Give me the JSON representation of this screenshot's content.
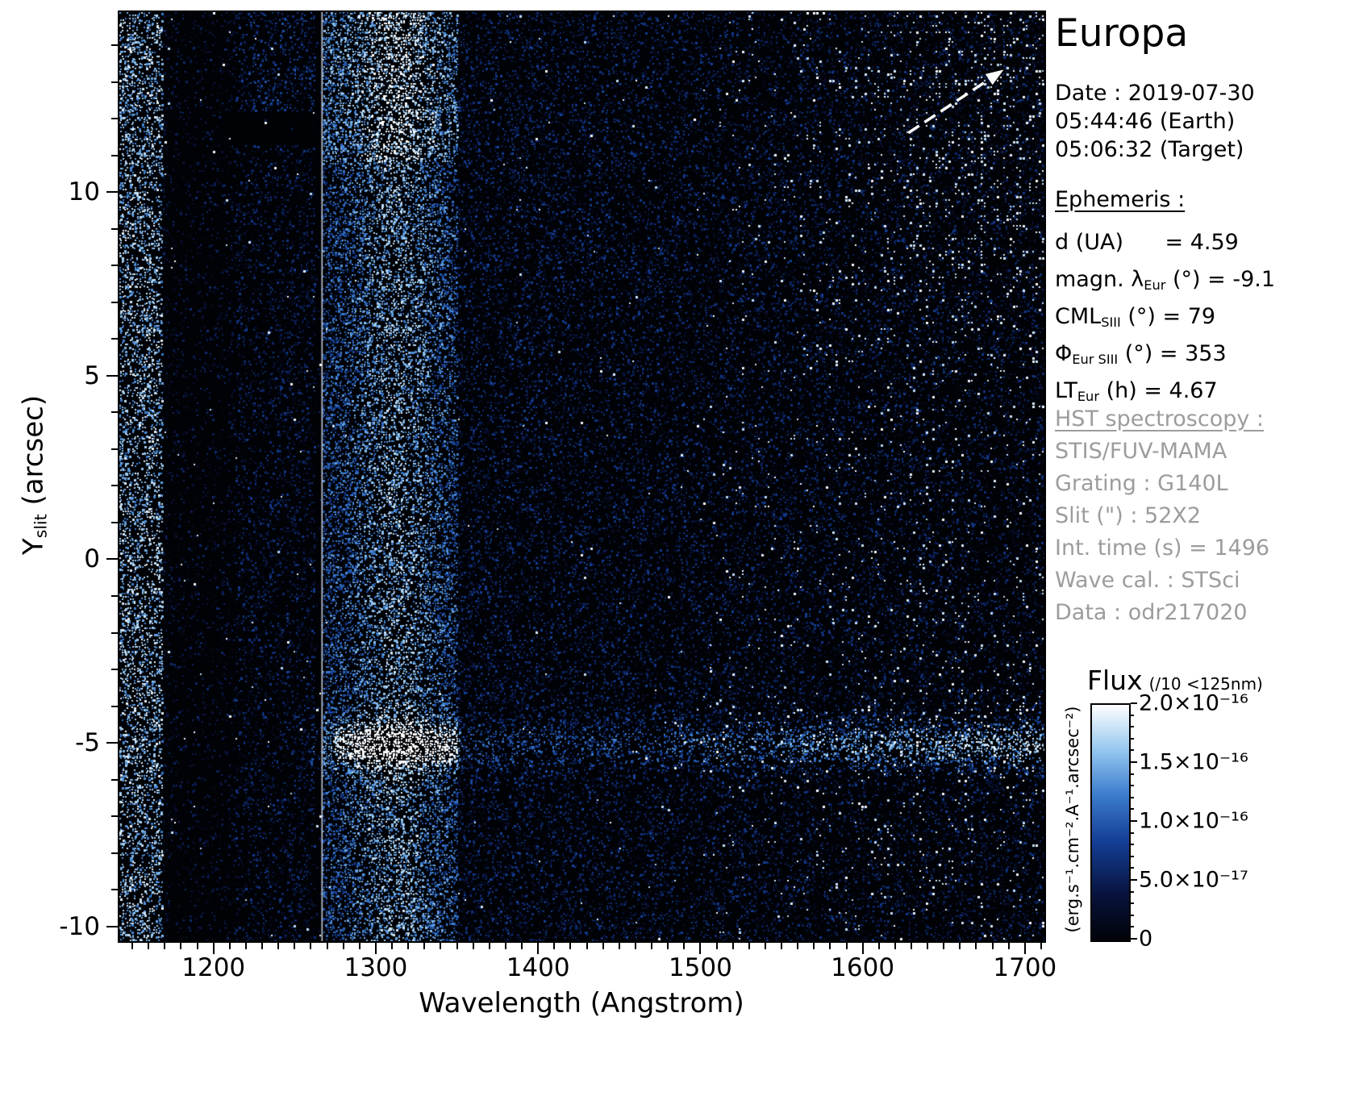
{
  "page": {
    "title": "Europa"
  },
  "info": {
    "date": "Date : 2019-07-30",
    "earth_time": "05:44:46 (Earth)",
    "target_time": "05:06:32 (Target)"
  },
  "ephemeris": {
    "heading": "Ephemeris :",
    "rows": [
      {
        "pre": "d (UA)",
        "sub": "",
        "post": "      = 4.59"
      },
      {
        "pre": "magn. λ",
        "sub": "Eur",
        "post": " (°) = -9.1"
      },
      {
        "pre": "CML",
        "sub": "SIII",
        "post": " (°) = 79"
      },
      {
        "pre": "Φ",
        "sub": "Eur SIII",
        "post": " (°) = 353"
      },
      {
        "pre": "LT",
        "sub": "Eur",
        "post": " (h) = 4.67"
      }
    ]
  },
  "hst": {
    "heading": "HST spectroscopy :",
    "lines": [
      "STIS/FUV-MAMA",
      "Grating : G140L",
      "Slit (\") : 52X2",
      "Int. time (s) = 1496",
      "Wave cal. : STSci",
      "Data : odr217020"
    ]
  },
  "colorbar": {
    "label": "Flux",
    "note": "(/10 <125nm)",
    "ticks": [
      "2.0×10⁻¹⁶",
      "1.5×10⁻¹⁶",
      "1.0×10⁻¹⁶",
      "5.0×10⁻¹⁷",
      "0"
    ],
    "unit": "(erg.s⁻¹.cm⁻².A⁻¹.arcsec⁻²)"
  },
  "axes": {
    "xlabel": "Wavelength (Angstrom)",
    "ylabel_pre": "Y",
    "ylabel_sub": "slit",
    "ylabel_post": " (arcsec)"
  },
  "chart_data": {
    "type": "heatmap",
    "title": "Europa",
    "xlabel": "Wavelength (Angstrom)",
    "ylabel": "Y_slit (arcsec)",
    "xlim": [
      1142,
      1712
    ],
    "ylim": [
      -10.4,
      14.9
    ],
    "x_ticks": [
      1200,
      1300,
      1400,
      1500,
      1600,
      1700
    ],
    "x_minor_step": 10,
    "y_ticks": [
      -10,
      -5,
      0,
      5,
      10
    ],
    "y_minor_step": 1,
    "colorbar_label": "Flux (/10 <125nm)",
    "colorbar_unit": "erg.s⁻¹.cm⁻².A⁻¹.arcsec⁻²",
    "colorbar_range": [
      0,
      2e-16
    ],
    "colorbar_tick_values": [
      0,
      5e-17,
      1e-16,
      1.5e-16,
      2e-16
    ],
    "seed": 20190730,
    "features": {
      "detector_left_edge_lam": [
        1142,
        1168
      ],
      "dark_band_lam": [
        1168,
        1213
      ],
      "moderate_band_lam": [
        1213,
        1262
      ],
      "masked_rect": {
        "lam": [
          1204,
          1266
        ],
        "y": [
          11.3,
          12.2
        ]
      },
      "detector_seam_lam": 1266.5,
      "bright_emission_column_lam": [
        1267,
        1350
      ],
      "emission_peak_lam": 1312,
      "europa_disk_streak_y": -5.05,
      "sparse_white_field_lam_start": 1500,
      "north_arrow": {
        "tail_frac": [
          0.853,
          0.13
        ],
        "head_frac": [
          0.956,
          0.062
        ]
      }
    }
  }
}
